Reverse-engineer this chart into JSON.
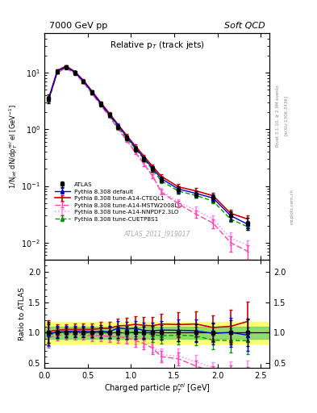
{
  "title_top_left": "7000 GeV pp",
  "title_top_right": "Soft QCD",
  "plot_title": "Relative p$_{T}$ (track jets)",
  "xlabel": "Charged particle p$_{T}^{rel}$ [GeV]",
  "ylabel_main": "1/N$_{jet}$ dN/dp$_{T}^{rel}$ el [GeV$^{-1}$]",
  "ylabel_ratio": "Ratio to ATLAS",
  "right_label": "Rivet 3.1.10, ≥ 2.9M events",
  "right_label2": "[arXiv:1306.3436]",
  "right_label3": "mcplots.cern.ch",
  "watermark": "ATLAS_2011_I919017",
  "xlim": [
    0.0,
    2.6
  ],
  "ylim_main": [
    0.005,
    50
  ],
  "ylim_ratio": [
    0.42,
    2.2
  ],
  "ratio_yticks": [
    0.5,
    1.0,
    1.5,
    2.0
  ],
  "band_yellow": [
    0.82,
    1.18
  ],
  "band_green": [
    0.9,
    1.1
  ],
  "atlas_x": [
    0.05,
    0.15,
    0.25,
    0.35,
    0.45,
    0.55,
    0.65,
    0.75,
    0.85,
    0.95,
    1.05,
    1.15,
    1.25,
    1.35,
    1.55,
    1.75,
    1.95,
    2.15,
    2.35
  ],
  "atlas_y": [
    3.5,
    10.5,
    12.5,
    10.0,
    7.0,
    4.5,
    2.8,
    1.8,
    1.1,
    0.7,
    0.45,
    0.3,
    0.2,
    0.13,
    0.085,
    0.072,
    0.062,
    0.03,
    0.022
  ],
  "atlas_yerr": [
    0.6,
    0.9,
    1.0,
    0.8,
    0.55,
    0.38,
    0.24,
    0.16,
    0.1,
    0.07,
    0.045,
    0.03,
    0.022,
    0.015,
    0.012,
    0.01,
    0.009,
    0.006,
    0.005
  ],
  "py_x": [
    0.05,
    0.15,
    0.25,
    0.35,
    0.45,
    0.55,
    0.65,
    0.75,
    0.85,
    0.95,
    1.05,
    1.15,
    1.25,
    1.35,
    1.55,
    1.75,
    1.95,
    2.15,
    2.35
  ],
  "default_y": [
    3.4,
    10.6,
    12.7,
    10.2,
    7.15,
    4.55,
    2.85,
    1.82,
    1.18,
    0.74,
    0.48,
    0.31,
    0.205,
    0.135,
    0.088,
    0.074,
    0.061,
    0.03,
    0.021
  ],
  "cteql1_y": [
    3.55,
    10.9,
    13.1,
    10.5,
    7.35,
    4.72,
    2.98,
    1.92,
    1.22,
    0.78,
    0.51,
    0.335,
    0.222,
    0.148,
    0.096,
    0.082,
    0.067,
    0.033,
    0.026
  ],
  "mstw_y": [
    3.2,
    10.0,
    12.0,
    9.6,
    6.7,
    4.25,
    2.65,
    1.68,
    1.02,
    0.64,
    0.39,
    0.245,
    0.148,
    0.078,
    0.048,
    0.032,
    0.022,
    0.01,
    0.007
  ],
  "nnpdf_y": [
    3.3,
    10.3,
    12.4,
    9.9,
    6.9,
    4.35,
    2.72,
    1.72,
    1.06,
    0.66,
    0.41,
    0.262,
    0.155,
    0.082,
    0.052,
    0.037,
    0.026,
    0.012,
    0.009
  ],
  "cuetp_y": [
    3.35,
    10.4,
    12.5,
    10.05,
    7.05,
    4.48,
    2.8,
    1.78,
    1.09,
    0.695,
    0.455,
    0.298,
    0.192,
    0.123,
    0.081,
    0.068,
    0.054,
    0.026,
    0.019
  ],
  "default_yerr": [
    0.25,
    0.35,
    0.4,
    0.32,
    0.25,
    0.18,
    0.12,
    0.09,
    0.06,
    0.04,
    0.03,
    0.02,
    0.015,
    0.012,
    0.009,
    0.008,
    0.007,
    0.004,
    0.003
  ],
  "cteql1_yerr": [
    0.28,
    0.38,
    0.44,
    0.36,
    0.28,
    0.2,
    0.14,
    0.1,
    0.07,
    0.05,
    0.035,
    0.024,
    0.017,
    0.014,
    0.011,
    0.009,
    0.008,
    0.005,
    0.004
  ],
  "mstw_yerr": [
    0.22,
    0.32,
    0.38,
    0.3,
    0.22,
    0.16,
    0.1,
    0.08,
    0.05,
    0.035,
    0.025,
    0.018,
    0.012,
    0.008,
    0.006,
    0.005,
    0.004,
    0.003,
    0.002
  ],
  "nnpdf_yerr": [
    0.23,
    0.33,
    0.4,
    0.31,
    0.23,
    0.17,
    0.11,
    0.085,
    0.055,
    0.038,
    0.028,
    0.019,
    0.013,
    0.009,
    0.007,
    0.006,
    0.004,
    0.003,
    0.002
  ],
  "cuetp_yerr": [
    0.24,
    0.34,
    0.41,
    0.31,
    0.24,
    0.17,
    0.11,
    0.088,
    0.056,
    0.038,
    0.028,
    0.019,
    0.013,
    0.01,
    0.007,
    0.006,
    0.005,
    0.003,
    0.002
  ],
  "colors": {
    "atlas": "#000000",
    "default": "#0000cc",
    "cteql1": "#cc0000",
    "mstw": "#ff44aa",
    "nnpdf": "#ff88ff",
    "cuetp": "#009900"
  },
  "legend_entries": [
    "ATLAS",
    "Pythia 8.308 default",
    "Pythia 8.308 tune-A14-CTEQL1",
    "Pythia 8.308 tune-A14-MSTW2008LO",
    "Pythia 8.308 tune-A14-NNPDF2.3LO",
    "Pythia 8.308 tune-CUETP8S1"
  ]
}
